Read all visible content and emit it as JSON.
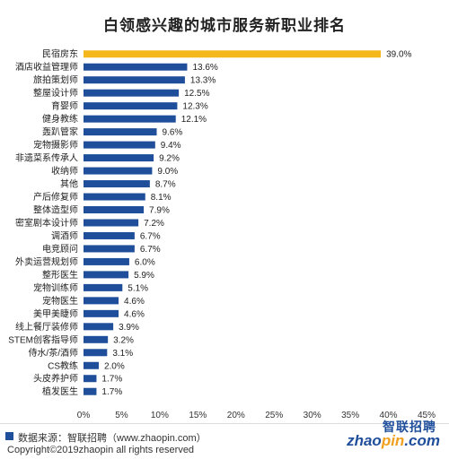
{
  "chart_data": {
    "type": "bar",
    "orientation": "horizontal",
    "title": "白领感兴趣的城市服务新职业排名",
    "categories": [
      "民宿房东",
      "酒店收益管理师",
      "旅拍策划师",
      "整屋设计师",
      "育婴师",
      "健身教练",
      "轰趴管家",
      "宠物摄影师",
      "非遗菜系传承人",
      "收纳师",
      "其他",
      "产后修复师",
      "整体造型师",
      "密室剧本设计师",
      "调酒师",
      "电竞顾问",
      "外卖运营规划师",
      "整形医生",
      "宠物训练师",
      "宠物医生",
      "美甲美睫师",
      "线上餐厅装修师",
      "STEM创客指导师",
      "侍水/茶/酒师",
      "CS教练",
      "头皮养护师",
      "植发医生"
    ],
    "values": [
      39.0,
      13.6,
      13.3,
      12.5,
      12.3,
      12.1,
      9.6,
      9.4,
      9.2,
      9.0,
      8.7,
      8.1,
      7.9,
      7.2,
      6.7,
      6.7,
      6.0,
      5.9,
      5.1,
      4.6,
      4.6,
      3.9,
      3.2,
      3.1,
      2.0,
      1.7,
      1.7
    ],
    "value_labels": [
      "39.0%",
      "13.6%",
      "13.3%",
      "12.5%",
      "12.3%",
      "12.1%",
      "9.6%",
      "9.4%",
      "9.2%",
      "9.0%",
      "8.7%",
      "8.1%",
      "7.9%",
      "7.2%",
      "6.7%",
      "6.7%",
      "6.0%",
      "5.9%",
      "5.1%",
      "4.6%",
      "4.6%",
      "3.9%",
      "3.2%",
      "3.1%",
      "2.0%",
      "1.7%",
      "1.7%"
    ],
    "xlim": [
      0,
      45
    ],
    "xticks": [
      "0%",
      "5%",
      "10%",
      "15%",
      "20%",
      "25%",
      "30%",
      "35%",
      "40%",
      "45%"
    ],
    "grid": false,
    "colors": {
      "highlight": "#f5b81c",
      "bar": "#1f4e9b"
    }
  },
  "footer": {
    "source": "数据来源：智联招聘（www.zhaopin.com）",
    "copyright": "Copyright©2019zhaopin all rights reserved"
  },
  "logo": {
    "cn": "智联招聘",
    "en_a": "zhao",
    "en_b": "pin",
    "en_c": ".com"
  }
}
